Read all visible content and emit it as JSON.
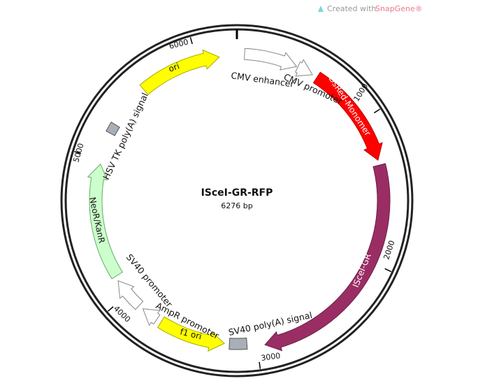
{
  "header": {
    "credit_prefix": "Created with",
    "credit_brand": "SnapGene®"
  },
  "plasmid": {
    "name": "ISceI-GR-RFP",
    "length": "6276 bp",
    "ticks": [
      "1000",
      "2000",
      "3000",
      "4000",
      "5000",
      "6000"
    ],
    "features": [
      {
        "label": "CMV enhancer"
      },
      {
        "label": "CMV promoter"
      },
      {
        "label": "DsRed-Monomer"
      },
      {
        "label": "ISceI-GR"
      },
      {
        "label": "SV40 poly(A) signal"
      },
      {
        "label": "f1 ori"
      },
      {
        "label": "AmpR promoter"
      },
      {
        "label": "SV40 promoter"
      },
      {
        "label": "NeoR/KanR"
      },
      {
        "label": "HSV TK poly(A) signal"
      },
      {
        "label": "ori"
      }
    ]
  }
}
